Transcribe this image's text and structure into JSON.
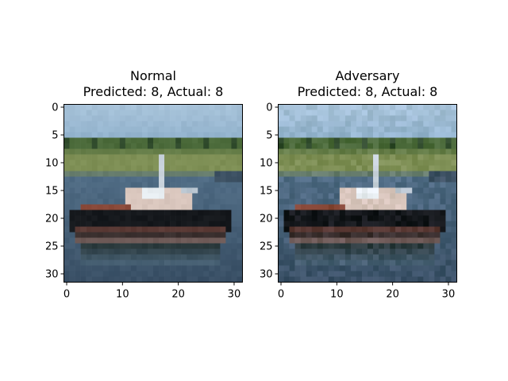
{
  "chart_data": [
    {
      "type": "image",
      "title_line1": "Normal",
      "title_line2": "Predicted: 8, Actual: 8",
      "image_content": "32x32 pixelated photo of a small boat on water with green shoreline and blue sky",
      "xlim": [
        -0.5,
        31.5
      ],
      "ylim": [
        31.5,
        -0.5
      ],
      "xticks": [
        0,
        10,
        20,
        30
      ],
      "yticks": [
        0,
        5,
        10,
        15,
        20,
        25,
        30
      ]
    },
    {
      "type": "image",
      "title_line1": "Adversary",
      "title_line2": "Predicted: 8, Actual: 8",
      "image_content": "32x32 pixelated photo of a small boat on water with green shoreline and blue sky (adversarially perturbed, slightly noisier)",
      "xlim": [
        -0.5,
        31.5
      ],
      "ylim": [
        31.5,
        -0.5
      ],
      "xticks": [
        0,
        10,
        20,
        30
      ],
      "yticks": [
        0,
        5,
        10,
        15,
        20,
        25,
        30
      ]
    }
  ],
  "colors": {
    "sky": "#94b4ce",
    "sky_light": "#a9c4da",
    "trees": "#4b6a3a",
    "trees_dark": "#2f4a2b",
    "shore": "#7e8f55",
    "water": "#4f6b84",
    "water_dark": "#3a5066",
    "hull": "#15181c",
    "hull_stripe": "#8a4a3a",
    "cabin": "#d9c6bd",
    "cabin_light": "#e8eef2",
    "reflection": "#2b3a3d"
  }
}
